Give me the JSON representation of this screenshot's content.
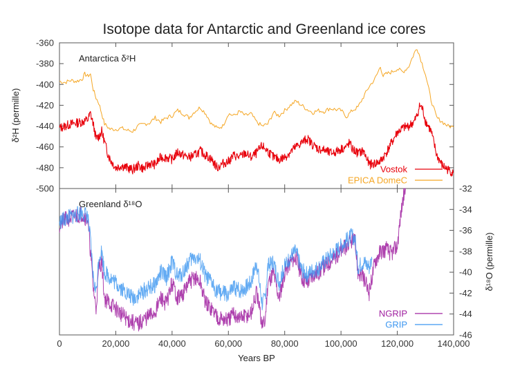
{
  "chart_data": [
    {
      "type": "line",
      "panel": "upper",
      "title": "Isotope data for Antarctic and Greenland ice cores",
      "annotation": "Antarctica δ²H",
      "xlabel": "Years BP",
      "ylabel": "δ²H (permille)",
      "xlim": [
        0,
        140000
      ],
      "ylim": [
        -500,
        -360
      ],
      "yticks": [
        -360,
        -380,
        -400,
        -420,
        -440,
        -460,
        -480,
        -500
      ],
      "ytick_labels": [
        "-360",
        "-380",
        "-400",
        "-420",
        "-440",
        "-460",
        "-480",
        "-500"
      ],
      "legend_position": "bottom-right",
      "series": [
        {
          "name": "Vostok",
          "color": "#e8000b",
          "x": [
            0,
            2000,
            4000,
            6000,
            8000,
            10000,
            11000,
            12000,
            13000,
            14000,
            15000,
            16000,
            17000,
            18000,
            20000,
            22000,
            24000,
            26000,
            28000,
            30000,
            32000,
            34000,
            36000,
            38000,
            40000,
            42000,
            44000,
            46000,
            48000,
            50000,
            52000,
            54000,
            56000,
            58000,
            60000,
            62000,
            64000,
            66000,
            68000,
            70000,
            72000,
            74000,
            76000,
            78000,
            80000,
            82000,
            84000,
            86000,
            88000,
            90000,
            92000,
            94000,
            96000,
            98000,
            100000,
            102000,
            103000,
            104000,
            106000,
            108000,
            110000,
            112000,
            114000,
            116000,
            118000,
            120000,
            122000,
            124000,
            126000,
            127000,
            128000,
            129000,
            130000,
            132000,
            134000,
            136000,
            138000,
            140000
          ],
          "y": [
            -442,
            -440,
            -438,
            -437,
            -436,
            -434,
            -428,
            -438,
            -452,
            -450,
            -445,
            -455,
            -465,
            -472,
            -480,
            -478,
            -480,
            -482,
            -478,
            -481,
            -476,
            -477,
            -470,
            -470,
            -472,
            -465,
            -468,
            -470,
            -468,
            -464,
            -468,
            -472,
            -480,
            -476,
            -474,
            -468,
            -470,
            -466,
            -470,
            -466,
            -459,
            -464,
            -470,
            -472,
            -470,
            -465,
            -460,
            -456,
            -452,
            -458,
            -462,
            -463,
            -466,
            -465,
            -462,
            -460,
            -456,
            -462,
            -466,
            -464,
            -477,
            -476,
            -474,
            -466,
            -456,
            -446,
            -442,
            -440,
            -436,
            -430,
            -420,
            -424,
            -435,
            -445,
            -468,
            -478,
            -482,
            -485
          ]
        },
        {
          "name": "EPICA DomeC",
          "color": "#f5a623",
          "x": [
            0,
            2000,
            4000,
            6000,
            8000,
            9000,
            10000,
            11000,
            12000,
            13000,
            14000,
            15000,
            16000,
            18000,
            20000,
            22000,
            24000,
            26000,
            28000,
            30000,
            32000,
            34000,
            36000,
            38000,
            40000,
            42000,
            44000,
            46000,
            48000,
            50000,
            52000,
            54000,
            56000,
            58000,
            60000,
            62000,
            64000,
            66000,
            68000,
            70000,
            72000,
            74000,
            76000,
            78000,
            80000,
            82000,
            84000,
            86000,
            88000,
            90000,
            92000,
            94000,
            96000,
            98000,
            100000,
            102000,
            104000,
            106000,
            108000,
            110000,
            112000,
            114000,
            115000,
            116000,
            118000,
            120000,
            122000,
            124000,
            126000,
            127000,
            128000,
            130000,
            132000,
            134000,
            136000,
            138000,
            140000
          ],
          "y": [
            -397,
            -398,
            -396,
            -397,
            -395,
            -390,
            -392,
            -390,
            -405,
            -413,
            -418,
            -428,
            -438,
            -443,
            -443,
            -442,
            -444,
            -445,
            -440,
            -438,
            -437,
            -432,
            -436,
            -432,
            -430,
            -425,
            -428,
            -432,
            -426,
            -422,
            -428,
            -438,
            -442,
            -440,
            -428,
            -430,
            -426,
            -430,
            -428,
            -436,
            -440,
            -438,
            -427,
            -430,
            -425,
            -420,
            -416,
            -420,
            -424,
            -427,
            -425,
            -426,
            -423,
            -424,
            -425,
            -431,
            -425,
            -422,
            -412,
            -402,
            -395,
            -383,
            -392,
            -390,
            -388,
            -385,
            -388,
            -383,
            -370,
            -365,
            -373,
            -390,
            -415,
            -432,
            -436,
            -440,
            -441
          ]
        }
      ]
    },
    {
      "type": "line",
      "panel": "lower",
      "annotation": "Greenland δ¹⁸O",
      "xlabel": "Years BP",
      "ylabel": "δ¹⁸O (permille)",
      "xlim": [
        0,
        140000
      ],
      "ylim": [
        -46,
        -32
      ],
      "xticks": [
        0,
        20000,
        40000,
        60000,
        80000,
        100000,
        120000,
        140000
      ],
      "xtick_labels": [
        "0",
        "20,000",
        "40,000",
        "60,000",
        "80,000",
        "100,000",
        "120,000",
        "140,000"
      ],
      "yticks": [
        -32,
        -34,
        -36,
        -38,
        -40,
        -42,
        -44,
        -46
      ],
      "ytick_labels": [
        "-32",
        "-34",
        "-36",
        "-38",
        "-40",
        "-42",
        "-44",
        "-46"
      ],
      "legend_position": "bottom-right",
      "series": [
        {
          "name": "NGRIP",
          "color": "#a020a0",
          "x": [
            0,
            2000,
            4000,
            6000,
            8000,
            10000,
            11000,
            12000,
            13000,
            14000,
            15000,
            16000,
            18000,
            20000,
            22000,
            24000,
            26000,
            28000,
            30000,
            32000,
            34000,
            36000,
            38000,
            40000,
            42000,
            44000,
            46000,
            48000,
            50000,
            52000,
            54000,
            56000,
            58000,
            60000,
            62000,
            64000,
            66000,
            68000,
            70000,
            72000,
            73000,
            74000,
            76000,
            78000,
            80000,
            82000,
            84000,
            86000,
            88000,
            90000,
            92000,
            94000,
            96000,
            98000,
            100000,
            102000,
            104000,
            105000,
            106000,
            108000,
            110000,
            112000,
            114000,
            116000,
            118000,
            120000,
            121000,
            122000,
            123000
          ],
          "y": [
            -35.5,
            -35.0,
            -34.8,
            -34.6,
            -34.4,
            -35.0,
            -38.0,
            -41.5,
            -43.5,
            -39.5,
            -39.0,
            -42.5,
            -43.0,
            -43.5,
            -44.0,
            -44.5,
            -44.8,
            -45.0,
            -44.5,
            -44.2,
            -43.8,
            -42.5,
            -43.0,
            -41.0,
            -42.5,
            -42.0,
            -41.0,
            -40.5,
            -41.0,
            -43.0,
            -43.5,
            -44.2,
            -44.5,
            -44.6,
            -44.0,
            -44.4,
            -44.2,
            -44.0,
            -42.0,
            -45.0,
            -44.8,
            -41.0,
            -40.0,
            -42.5,
            -40.0,
            -39.0,
            -38.5,
            -40.5,
            -41.0,
            -40.2,
            -40.0,
            -39.5,
            -39.0,
            -38.5,
            -38.0,
            -37.5,
            -37.0,
            -37.2,
            -40.0,
            -40.5,
            -42.0,
            -39.0,
            -38.0,
            -37.8,
            -38.2,
            -37.5,
            -35.0,
            -33.0,
            -32.0
          ]
        },
        {
          "name": "GRIP",
          "color": "#3c96f0",
          "x": [
            0,
            2000,
            4000,
            6000,
            8000,
            10000,
            11000,
            12000,
            13000,
            14000,
            15000,
            16000,
            18000,
            20000,
            22000,
            24000,
            26000,
            28000,
            30000,
            32000,
            34000,
            36000,
            38000,
            40000,
            42000,
            44000,
            46000,
            48000,
            50000,
            52000,
            54000,
            56000,
            58000,
            60000,
            62000,
            64000,
            66000,
            68000,
            70000,
            72000,
            73000,
            74000,
            76000,
            78000,
            80000,
            82000,
            84000,
            86000,
            88000,
            90000,
            92000,
            94000,
            96000,
            98000,
            100000,
            102000,
            104000,
            105000,
            106000,
            108000,
            110000,
            111000
          ],
          "y": [
            -35.2,
            -34.9,
            -34.7,
            -34.5,
            -34.3,
            -34.6,
            -37.0,
            -40.5,
            -42.0,
            -38.5,
            -38.0,
            -40.0,
            -40.5,
            -41.0,
            -41.5,
            -42.0,
            -42.5,
            -42.2,
            -41.8,
            -41.5,
            -41.2,
            -40.0,
            -40.5,
            -39.0,
            -40.5,
            -40.0,
            -39.0,
            -38.5,
            -39.0,
            -40.5,
            -41.0,
            -41.8,
            -42.0,
            -42.2,
            -41.5,
            -41.8,
            -41.5,
            -41.0,
            -39.0,
            -43.0,
            -42.5,
            -39.5,
            -39.0,
            -41.0,
            -39.5,
            -38.5,
            -38.0,
            -39.8,
            -40.2,
            -39.8,
            -39.6,
            -39.0,
            -38.5,
            -38.0,
            -37.5,
            -37.0,
            -36.5,
            -36.8,
            -39.5,
            -39.0,
            -39.5,
            -38.8
          ]
        }
      ]
    }
  ]
}
